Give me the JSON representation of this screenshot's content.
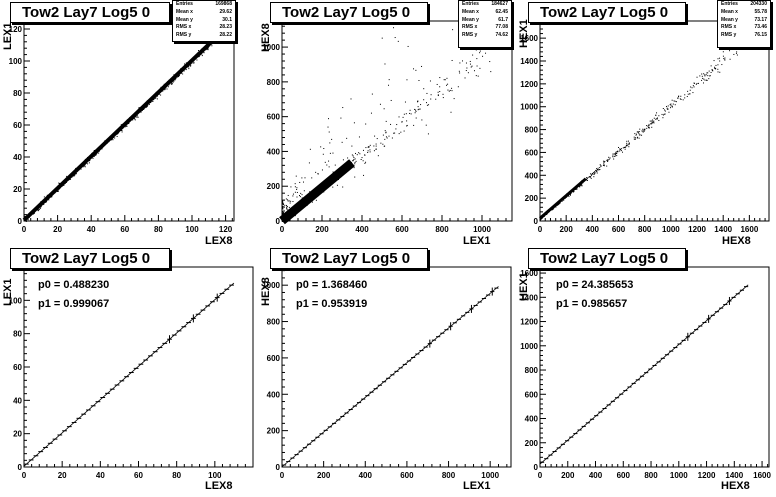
{
  "chart_data": [
    {
      "type": "scatter",
      "title": "Tow2 Lay7 Log5 0",
      "xlabel": "LEX8",
      "ylabel": "LEX1",
      "xlim": [
        0,
        125
      ],
      "ylim": [
        0,
        125
      ],
      "x_ticks": [
        0,
        20,
        40,
        60,
        80,
        100,
        120
      ],
      "y_ticks": [
        0,
        20,
        40,
        60,
        80,
        100,
        120
      ],
      "stats": [
        {
          "label": "Entries",
          "value": "169868"
        },
        {
          "label": "Mean x",
          "value": "29.62"
        },
        {
          "label": "Mean y",
          "value": "30.1"
        },
        {
          "label": "RMS x",
          "value": "28.23"
        },
        {
          "label": "RMS y",
          "value": "28.22"
        }
      ],
      "trend": {
        "slope": 0.9991,
        "intercept": 0.49,
        "x_range": [
          0,
          112
        ]
      }
    },
    {
      "type": "scatter",
      "title": "Tow2 Lay7 Log5 0",
      "xlabel": "LEX1",
      "ylabel": "HEX8",
      "xlim": [
        0,
        1150
      ],
      "ylim": [
        0,
        1150
      ],
      "x_ticks": [
        0,
        200,
        400,
        600,
        800,
        1000
      ],
      "y_ticks": [
        0,
        200,
        400,
        600,
        800,
        1000
      ],
      "stats": [
        {
          "label": "Entries",
          "value": "184627"
        },
        {
          "label": "Mean x",
          "value": "62.45"
        },
        {
          "label": "Mean y",
          "value": "61.7"
        },
        {
          "label": "RMS x",
          "value": "77.08"
        },
        {
          "label": "RMS y",
          "value": "74.62"
        }
      ],
      "trend": {
        "slope": 0.9539,
        "intercept": 1.37,
        "x_range": [
          0,
          1050
        ]
      }
    },
    {
      "type": "scatter",
      "title": "Tow2 Lay7 Log5 0",
      "xlabel": "HEX8",
      "ylabel": "HEX1",
      "xlim": [
        0,
        1750
      ],
      "ylim": [
        0,
        1750
      ],
      "x_ticks": [
        0,
        200,
        400,
        600,
        800,
        1000,
        1200,
        1400,
        1600
      ],
      "y_ticks": [
        0,
        200,
        400,
        600,
        800,
        1000,
        1200,
        1400,
        1600
      ],
      "stats": [
        {
          "label": "Entries",
          "value": "204330"
        },
        {
          "label": "Mean x",
          "value": "55.78"
        },
        {
          "label": "Mean y",
          "value": "73.17"
        },
        {
          "label": "RMS x",
          "value": "73.46"
        },
        {
          "label": "RMS y",
          "value": "76.15"
        }
      ],
      "trend": {
        "slope": 0.9857,
        "intercept": 24.39,
        "x_range": [
          0,
          1550
        ]
      }
    },
    {
      "type": "line",
      "title": "Tow2 Lay7 Log5 0",
      "xlabel": "LEX8",
      "ylabel": "LEX1",
      "xlim": [
        0,
        120
      ],
      "ylim": [
        0,
        120
      ],
      "x_ticks": [
        0,
        20,
        40,
        60,
        80,
        100
      ],
      "y_ticks": [
        0,
        20,
        40,
        60,
        80,
        100
      ],
      "fit": [
        {
          "label": "p0 = 0.488230"
        },
        {
          "label": "p1 = 0.999067"
        }
      ],
      "p0": 0.48823,
      "p1": 0.999067,
      "profile": {
        "x_range": [
          0,
          110
        ],
        "n_bins": 44
      }
    },
    {
      "type": "line",
      "title": "Tow2 Lay7 Log5 0",
      "xlabel": "LEX1",
      "ylabel": "HEX8",
      "xlim": [
        0,
        1100
      ],
      "ylim": [
        0,
        1100
      ],
      "x_ticks": [
        0,
        200,
        400,
        600,
        800,
        1000
      ],
      "y_ticks": [
        0,
        200,
        400,
        600,
        800,
        1000
      ],
      "fit": [
        {
          "label": "p0 = 1.368460"
        },
        {
          "label": "p1 = 0.953919"
        }
      ],
      "p0": 1.36846,
      "p1": 0.953919,
      "profile": {
        "x_range": [
          0,
          1040
        ],
        "n_bins": 52
      }
    },
    {
      "type": "line",
      "title": "Tow2 Lay7 Log5 0",
      "xlabel": "HEX8",
      "ylabel": "HEX1",
      "xlim": [
        0,
        1650
      ],
      "ylim": [
        0,
        1650
      ],
      "x_ticks": [
        0,
        200,
        400,
        600,
        800,
        1000,
        1200,
        1400,
        1600
      ],
      "y_ticks": [
        0,
        200,
        400,
        600,
        800,
        1000,
        1200,
        1400,
        1600
      ],
      "fit": [
        {
          "label": "p0 = 24.385653"
        },
        {
          "label": "p1 = 0.985657"
        }
      ],
      "p0": 24.385653,
      "p1": 0.985657,
      "profile": {
        "x_range": [
          0,
          1500
        ],
        "n_bins": 50
      }
    }
  ]
}
